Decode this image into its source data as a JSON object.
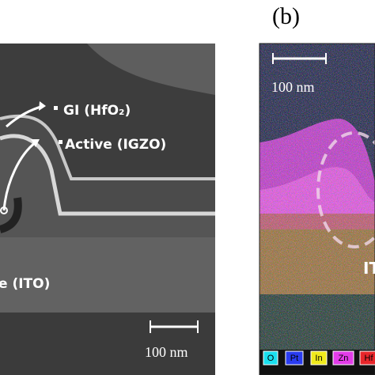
{
  "panel_label": "(b)",
  "left": {
    "labels": [
      "GI (HfO₂)",
      "Active (IGZO)",
      "e (ITO)"
    ],
    "scale_bar": "100 nm"
  },
  "right": {
    "scale_bar": "100 nm",
    "label": "IT",
    "legend": [
      {
        "name": "O",
        "color": "#19e0ef"
      },
      {
        "name": "Pt",
        "color": "#2a3cf0"
      },
      {
        "name": "In",
        "color": "#f0ea1c"
      },
      {
        "name": "Zn",
        "color": "#e23ce8"
      },
      {
        "name": "Hf",
        "color": "#e8262a"
      }
    ]
  }
}
